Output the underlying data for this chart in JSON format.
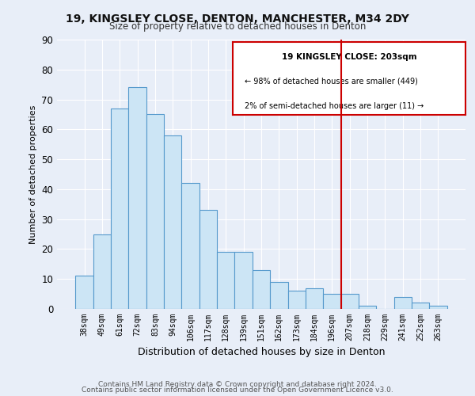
{
  "title": "19, KINGSLEY CLOSE, DENTON, MANCHESTER, M34 2DY",
  "subtitle": "Size of property relative to detached houses in Denton",
  "xlabel": "Distribution of detached houses by size in Denton",
  "ylabel": "Number of detached properties",
  "bar_labels": [
    "38sqm",
    "49sqm",
    "61sqm",
    "72sqm",
    "83sqm",
    "94sqm",
    "106sqm",
    "117sqm",
    "128sqm",
    "139sqm",
    "151sqm",
    "162sqm",
    "173sqm",
    "184sqm",
    "196sqm",
    "207sqm",
    "218sqm",
    "229sqm",
    "241sqm",
    "252sqm",
    "263sqm"
  ],
  "bar_values": [
    11,
    25,
    67,
    74,
    65,
    58,
    42,
    33,
    19,
    19,
    13,
    9,
    6,
    7,
    5,
    5,
    1,
    0,
    4,
    2,
    1
  ],
  "bar_color": "#cce5f5",
  "bar_edge_color": "#5599cc",
  "ylim": [
    0,
    90
  ],
  "yticks": [
    0,
    10,
    20,
    30,
    40,
    50,
    60,
    70,
    80,
    90
  ],
  "vline_color": "#cc0000",
  "legend_title": "19 KINGSLEY CLOSE: 203sqm",
  "legend_line1": "← 98% of detached houses are smaller (449)",
  "legend_line2": "2% of semi-detached houses are larger (11) →",
  "footer_line1": "Contains HM Land Registry data © Crown copyright and database right 2024.",
  "footer_line2": "Contains public sector information licensed under the Open Government Licence v3.0.",
  "background_color": "#e8eef8"
}
